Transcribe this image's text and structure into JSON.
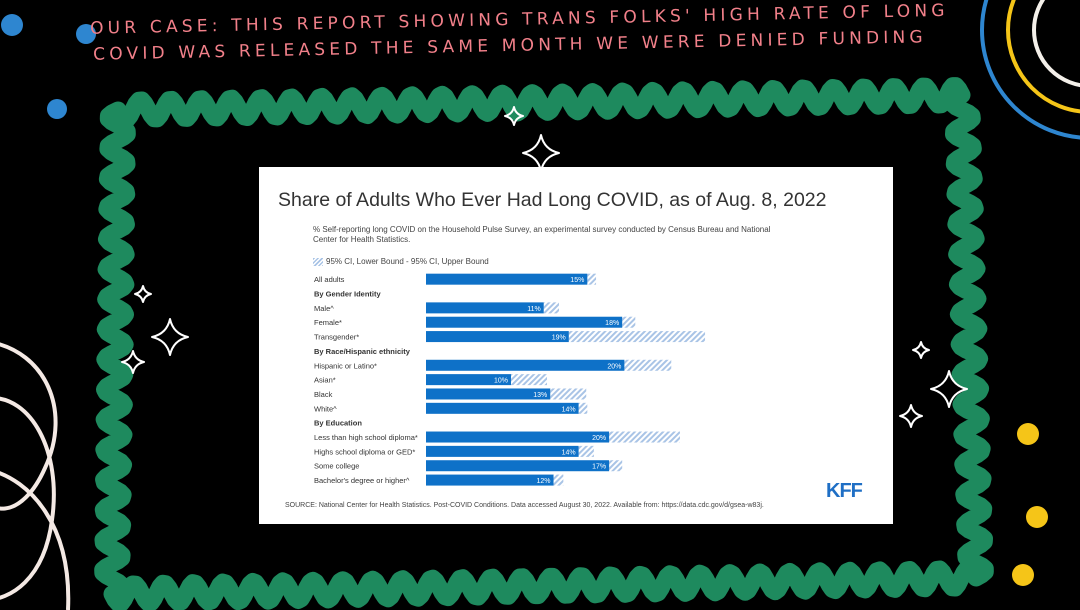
{
  "headline": {
    "line1": "our case: this report showing trans folks' high rate of long",
    "line2": "covid was released the same month we were denied funding"
  },
  "colors": {
    "frame": "#1e8a5e",
    "headline": "#f2808a",
    "bar": "#0e71c8",
    "ci": "#a9c4e6",
    "logo": "#1f6fc5"
  },
  "chart_data": {
    "type": "bar",
    "orientation": "horizontal",
    "title": "Share of Adults Who Ever Had Long COVID, as of Aug. 8, 2022",
    "subtitle": "% Self-reporting long COVID on the Household Pulse Survey, an experimental survey conducted by Census Bureau and National Center for Health Statistics.",
    "legend": "95% CI, Lower Bound - 95% CI, Upper Bound",
    "source": "SOURCE: National Center for Health Statistics. Post-COVID Conditions. Data accessed August 30, 2022. Available from: https://data.cdc.gov/d/gsea-w83j.",
    "logo": "KFF",
    "rows": [
      {
        "kind": "bar",
        "label": "All adults",
        "value": 15,
        "value_label": "15%",
        "ci": [
          14.8,
          15.6
        ]
      },
      {
        "kind": "header",
        "label": "By Gender Identity"
      },
      {
        "kind": "bar",
        "label": "Male^",
        "value": 11,
        "value_label": "11%",
        "ci": [
          10.8,
          12.2
        ]
      },
      {
        "kind": "bar",
        "label": "Female*",
        "value": 18,
        "value_label": "18%",
        "ci": [
          18.1,
          19.2
        ]
      },
      {
        "kind": "bar",
        "label": "Transgender*",
        "value": 19,
        "value_label": "19%",
        "ci": [
          13.1,
          25.6
        ]
      },
      {
        "kind": "header",
        "label": "By Race/Hispanic ethnicity"
      },
      {
        "kind": "bar",
        "label": "Hispanic or Latino*",
        "value": 20,
        "value_label": "20%",
        "ci": [
          18.2,
          22.5
        ]
      },
      {
        "kind": "bar",
        "label": "Asian*",
        "value": 10,
        "value_label": "10%",
        "ci": [
          7.8,
          11.1
        ]
      },
      {
        "kind": "bar",
        "label": "Black",
        "value": 13,
        "value_label": "13%",
        "ci": [
          11.4,
          14.7
        ]
      },
      {
        "kind": "bar",
        "label": "White^",
        "value": 14,
        "value_label": "14%",
        "ci": [
          14.3,
          14.8
        ]
      },
      {
        "kind": "header",
        "label": "By Education"
      },
      {
        "kind": "bar",
        "label": "Less than high school diploma*",
        "value": 20,
        "value_label": "20%",
        "ci": [
          16.8,
          23.3
        ]
      },
      {
        "kind": "bar",
        "label": "Highs school diploma or GED*",
        "value": 14,
        "value_label": "14%",
        "ci": [
          14.1,
          15.4
        ]
      },
      {
        "kind": "bar",
        "label": "Some college",
        "value": 17,
        "value_label": "17%",
        "ci": [
          16.8,
          18.0
        ]
      },
      {
        "kind": "bar",
        "label": "Bachelor's degree or higher^",
        "value": 12,
        "value_label": "12%",
        "ci": [
          11.7,
          12.6
        ]
      }
    ]
  }
}
